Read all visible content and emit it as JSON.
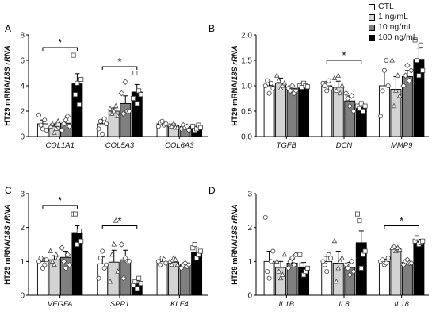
{
  "legend": {
    "items": [
      {
        "label": "CTL",
        "color": "#ffffff"
      },
      {
        "label": "1 ng/mL",
        "color": "#d3d3d3"
      },
      {
        "label": "10 ng/mL",
        "color": "#7f7f7f"
      },
      {
        "label": "100 ng/mL",
        "color": "#000000"
      }
    ]
  },
  "chart_data": [
    {
      "panel": "A",
      "type": "bar",
      "ylabel": "HT29 mRNA/18S rRNA",
      "ylim": [
        0,
        8
      ],
      "yticks": [
        "0",
        "2",
        "4",
        "6",
        "8"
      ],
      "categories": [
        "COL1A1",
        "COL5A3",
        "COL6A3"
      ],
      "series_labels": [
        "CTL",
        "1 ng/mL",
        "10 ng/mL",
        "100 ng/mL"
      ],
      "values": [
        [
          1.0,
          0.8,
          1.05,
          4.15
        ],
        [
          1.0,
          2.0,
          2.6,
          3.5
        ],
        [
          1.0,
          0.9,
          0.78,
          0.7
        ]
      ],
      "errors": [
        [
          0.3,
          0.2,
          0.25,
          0.8
        ],
        [
          0.35,
          0.25,
          0.6,
          0.6
        ],
        [
          0.2,
          0.1,
          0.1,
          0.1
        ]
      ],
      "points": [
        [
          [
            1.7,
            0.9,
            0.6,
            1.3,
            0.5
          ],
          [
            0.8,
            1.0,
            0.3,
            0.6,
            1.2
          ],
          [
            0.5,
            1.0,
            1.3,
            1.6,
            0.8
          ],
          [
            6.4,
            3.3,
            4.2,
            2.5,
            4.5
          ]
        ],
        [
          [
            0.6,
            1.2,
            0.2,
            1.4,
            1.0
          ],
          [
            2.2,
            1.8,
            2.0,
            2.4,
            1.6
          ],
          [
            3.4,
            1.8,
            4.3,
            2.0,
            2.0
          ],
          [
            3.0,
            5.0,
            2.6,
            3.6,
            3.3
          ]
        ],
        [
          [
            0.8,
            1.1,
            1.2,
            0.9,
            1.0
          ],
          [
            0.9,
            0.8,
            1.0,
            0.7,
            0.7
          ],
          [
            0.6,
            0.9,
            0.7,
            0.8,
            0.5
          ],
          [
            0.8,
            0.5,
            0.6,
            0.9,
            0.7
          ]
        ]
      ],
      "significance": [
        {
          "category": "COL1A1",
          "from": 0,
          "to": 3,
          "y": 7.0,
          "label": "*"
        },
        {
          "category": "COL5A3",
          "from": 0,
          "to": 3,
          "y": 5.5,
          "label": "*"
        }
      ]
    },
    {
      "panel": "B",
      "type": "bar",
      "ylabel": "HT29 mRNA/18S rRNA",
      "ylim": [
        0,
        2.0
      ],
      "yticks": [
        "0.0",
        "0.5",
        "1.0",
        "1.5",
        "2.0"
      ],
      "categories": [
        "TGFB",
        "DCN",
        "MMP9"
      ],
      "series_labels": [
        "CTL",
        "1 ng/mL",
        "10 ng/mL",
        "100 ng/mL"
      ],
      "values": [
        [
          1.0,
          1.05,
          0.95,
          1.0
        ],
        [
          1.0,
          0.97,
          0.7,
          0.58
        ],
        [
          1.0,
          0.93,
          1.18,
          1.52
        ]
      ],
      "errors": [
        [
          0.08,
          0.1,
          0.05,
          0.05
        ],
        [
          0.08,
          0.12,
          0.1,
          0.07
        ],
        [
          0.3,
          0.25,
          0.12,
          0.22
        ]
      ],
      "points": [
        [
          [
            1.0,
            1.1,
            0.85,
            1.05,
            0.95
          ],
          [
            1.2,
            1.1,
            0.95,
            1.0,
            1.05
          ],
          [
            0.95,
            0.9,
            1.0,
            0.85,
            0.9
          ],
          [
            1.0,
            0.97,
            1.05,
            1.0,
            0.98
          ]
        ],
        [
          [
            1.05,
            1.0,
            0.9,
            1.1,
            0.95
          ],
          [
            1.15,
            0.9,
            1.2,
            0.85,
            1.0
          ],
          [
            0.85,
            0.75,
            0.6,
            0.8,
            0.5
          ],
          [
            0.6,
            0.55,
            0.65,
            0.5,
            0.6
          ]
        ],
        [
          [
            0.4,
            0.9,
            1.3,
            1.5,
            1.0
          ],
          [
            1.5,
            0.6,
            0.9,
            1.2,
            0.8
          ],
          [
            1.0,
            1.2,
            1.4,
            1.1,
            1.3
          ],
          [
            1.9,
            1.5,
            1.2,
            1.8,
            1.3
          ]
        ]
      ],
      "significance": [
        {
          "category": "DCN",
          "from": 0,
          "to": 3,
          "y": 1.5,
          "label": "*"
        }
      ]
    },
    {
      "panel": "C",
      "type": "bar",
      "ylabel": "HT29 mRNA/18S rRNA",
      "ylim": [
        0,
        3
      ],
      "yticks": [
        "0",
        "1",
        "2",
        "3"
      ],
      "categories": [
        "VEGFA",
        "SPP1",
        "KLF4"
      ],
      "series_labels": [
        "CTL",
        "1 ng/mL",
        "10 ng/mL",
        "100 ng/mL"
      ],
      "values": [
        [
          1.0,
          1.05,
          1.12,
          1.85
        ],
        [
          0.93,
          0.98,
          1.05,
          0.35
        ],
        [
          1.0,
          0.98,
          0.9,
          1.28
        ]
      ],
      "errors": [
        [
          0.1,
          0.12,
          0.18,
          0.2
        ],
        [
          0.2,
          0.35,
          0.28,
          0.08
        ],
        [
          0.07,
          0.08,
          0.06,
          0.12
        ]
      ],
      "points": [
        [
          [
            1.0,
            1.1,
            0.8,
            0.9,
            1.05
          ],
          [
            1.3,
            1.0,
            0.9,
            1.2,
            1.1
          ],
          [
            1.4,
            1.0,
            0.8,
            1.2,
            0.9
          ],
          [
            2.4,
            2.4,
            1.5,
            1.9,
            1.6
          ]
        ],
        [
          [
            0.5,
            1.1,
            1.3,
            0.8,
            0.9
          ],
          [
            0.4,
            1.2,
            1.5,
            2.2,
            0.7
          ],
          [
            1.5,
            0.5,
            1.1,
            1.0,
            1.0
          ],
          [
            0.3,
            0.4,
            0.2,
            0.5,
            0.35
          ]
        ],
        [
          [
            1.0,
            0.9,
            1.1,
            1.05,
            0.95
          ],
          [
            1.0,
            0.9,
            1.1,
            1.05,
            0.9
          ],
          [
            0.8,
            0.9,
            0.95,
            0.85,
            0.9
          ],
          [
            1.4,
            1.5,
            1.1,
            1.2,
            1.3
          ]
        ]
      ],
      "significance": [
        {
          "category": "VEGFA",
          "from": 0,
          "to": 3,
          "y": 2.65,
          "label": "*"
        },
        {
          "category": "SPP1",
          "from": 0,
          "to": 3,
          "y": 2.05,
          "label": "*"
        }
      ]
    },
    {
      "panel": "D",
      "type": "bar",
      "ylabel": "HT29 mRNA/18S rRNA",
      "ylim": [
        0,
        3
      ],
      "yticks": [
        "0",
        "1",
        "2",
        "3"
      ],
      "categories": [
        "IL1B",
        "IL8",
        "IL18"
      ],
      "series_labels": [
        "CTL",
        "1 ng/mL",
        "10 ng/mL",
        "100 ng/mL"
      ],
      "values": [
        [
          1.0,
          0.82,
          0.95,
          0.82
        ],
        [
          1.0,
          0.95,
          0.82,
          1.55
        ],
        [
          1.0,
          1.38,
          0.97,
          1.58
        ]
      ],
      "errors": [
        [
          0.3,
          0.18,
          0.12,
          0.15
        ],
        [
          0.15,
          0.35,
          0.15,
          0.35
        ],
        [
          0.07,
          0.05,
          0.05,
          0.07
        ]
      ],
      "points": [
        [
          [
            2.3,
            0.7,
            0.5,
            1.0,
            1.3
          ],
          [
            1.0,
            0.7,
            0.5,
            0.6,
            1.2
          ],
          [
            0.8,
            1.0,
            1.1,
            0.9,
            1.2
          ],
          [
            1.2,
            0.9,
            0.6,
            0.7,
            0.8
          ]
        ],
        [
          [
            1.0,
            0.9,
            0.7,
            1.2,
            1.1
          ],
          [
            1.6,
            0.4,
            0.8,
            1.0,
            1.1
          ],
          [
            0.9,
            0.8,
            0.6,
            1.0,
            0.7
          ],
          [
            2.4,
            2.2,
            0.8,
            1.2,
            1.3
          ]
        ],
        [
          [
            1.0,
            1.05,
            0.9,
            0.95,
            1.1
          ],
          [
            1.4,
            1.45,
            1.3,
            1.4,
            1.35
          ],
          [
            0.9,
            1.0,
            1.05,
            0.95,
            0.95
          ],
          [
            1.6,
            1.7,
            1.5,
            1.55,
            1.6
          ]
        ]
      ],
      "significance": [
        {
          "category": "IL18",
          "from": 0,
          "to": 3,
          "y": 2.05,
          "label": "*"
        }
      ]
    }
  ]
}
